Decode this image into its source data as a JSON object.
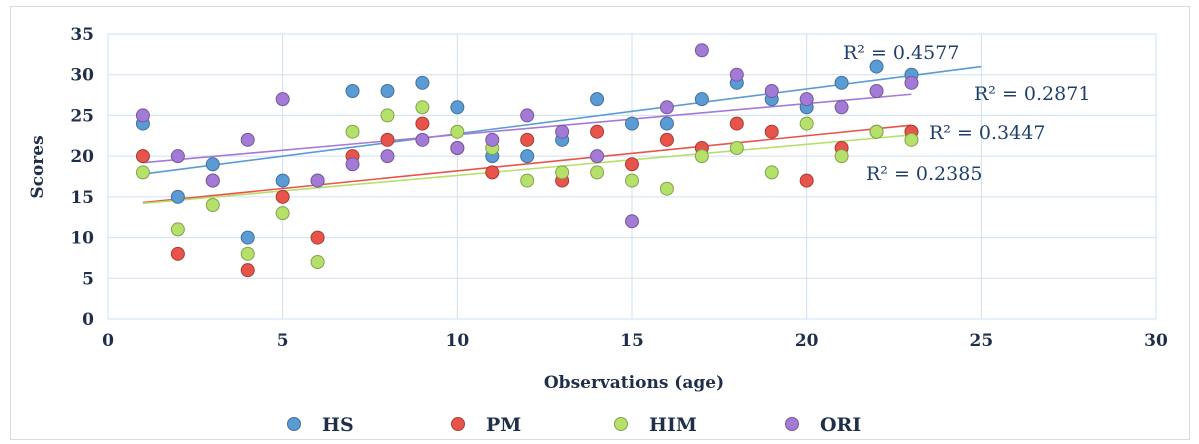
{
  "chart_data": {
    "type": "scatter",
    "xlabel": "Observations (age)",
    "ylabel": "Scores",
    "xlim": [
      0,
      30
    ],
    "ylim": [
      0,
      35
    ],
    "xticks": [
      0,
      5,
      10,
      15,
      20,
      25,
      30
    ],
    "yticks": [
      0,
      5,
      10,
      15,
      20,
      25,
      30,
      35
    ],
    "grid": true,
    "legend_position": "bottom",
    "series": [
      {
        "name": "HS",
        "color": "#5b9bd5",
        "points": [
          [
            1,
            24
          ],
          [
            2,
            15
          ],
          [
            3,
            19
          ],
          [
            4,
            10
          ],
          [
            5,
            17
          ],
          [
            6,
            17
          ],
          [
            7,
            28
          ],
          [
            8,
            28
          ],
          [
            9,
            29
          ],
          [
            10,
            26
          ],
          [
            11,
            20
          ],
          [
            12,
            20
          ],
          [
            13,
            22
          ],
          [
            14,
            27
          ],
          [
            15,
            24
          ],
          [
            16,
            24
          ],
          [
            17,
            27
          ],
          [
            18,
            29
          ],
          [
            19,
            27
          ],
          [
            20,
            26
          ],
          [
            21,
            29
          ],
          [
            22,
            31
          ],
          [
            23,
            30
          ]
        ],
        "trendline": {
          "x": [
            1,
            25
          ],
          "y": [
            17.8,
            31.0
          ],
          "r2_label": "R² = 0.4577"
        }
      },
      {
        "name": "PM",
        "color": "#e8534a",
        "points": [
          [
            1,
            20
          ],
          [
            2,
            8
          ],
          [
            3,
            17
          ],
          [
            4,
            6
          ],
          [
            5,
            15
          ],
          [
            6,
            10
          ],
          [
            7,
            20
          ],
          [
            8,
            22
          ],
          [
            9,
            24
          ],
          [
            10,
            21
          ],
          [
            11,
            18
          ],
          [
            12,
            22
          ],
          [
            13,
            17
          ],
          [
            14,
            23
          ],
          [
            15,
            19
          ],
          [
            16,
            22
          ],
          [
            17,
            21
          ],
          [
            18,
            24
          ],
          [
            19,
            23
          ],
          [
            20,
            17
          ],
          [
            21,
            21
          ],
          [
            22,
            23
          ],
          [
            23,
            23
          ]
        ],
        "trendline": {
          "x": [
            1,
            23
          ],
          "y": [
            14.3,
            23.8
          ],
          "r2_label": "R² = 0.3447"
        }
      },
      {
        "name": "HIM",
        "color": "#b5e06a",
        "points": [
          [
            1,
            18
          ],
          [
            2,
            11
          ],
          [
            3,
            14
          ],
          [
            4,
            8
          ],
          [
            5,
            13
          ],
          [
            6,
            7
          ],
          [
            7,
            23
          ],
          [
            8,
            25
          ],
          [
            9,
            26
          ],
          [
            10,
            23
          ],
          [
            11,
            21
          ],
          [
            12,
            17
          ],
          [
            13,
            18
          ],
          [
            14,
            18
          ],
          [
            15,
            17
          ],
          [
            16,
            16
          ],
          [
            17,
            20
          ],
          [
            18,
            21
          ],
          [
            19,
            18
          ],
          [
            20,
            24
          ],
          [
            21,
            20
          ],
          [
            22,
            23
          ],
          [
            23,
            22
          ]
        ],
        "trendline": {
          "x": [
            1,
            23
          ],
          "y": [
            14.2,
            22.6
          ],
          "r2_label": "R² = 0.2385"
        }
      },
      {
        "name": "ORI",
        "color": "#a37ad6",
        "points": [
          [
            1,
            25
          ],
          [
            2,
            20
          ],
          [
            3,
            17
          ],
          [
            4,
            22
          ],
          [
            5,
            27
          ],
          [
            6,
            17
          ],
          [
            7,
            19
          ],
          [
            8,
            20
          ],
          [
            9,
            22
          ],
          [
            10,
            21
          ],
          [
            11,
            22
          ],
          [
            12,
            25
          ],
          [
            13,
            23
          ],
          [
            14,
            20
          ],
          [
            15,
            12
          ],
          [
            16,
            26
          ],
          [
            17,
            33
          ],
          [
            18,
            30
          ],
          [
            19,
            28
          ],
          [
            20,
            27
          ],
          [
            21,
            26
          ],
          [
            22,
            28
          ],
          [
            23,
            29
          ]
        ],
        "trendline": {
          "x": [
            1,
            23
          ],
          "y": [
            19.2,
            27.6
          ],
          "r2_label": "R² = 0.2871"
        }
      }
    ]
  }
}
